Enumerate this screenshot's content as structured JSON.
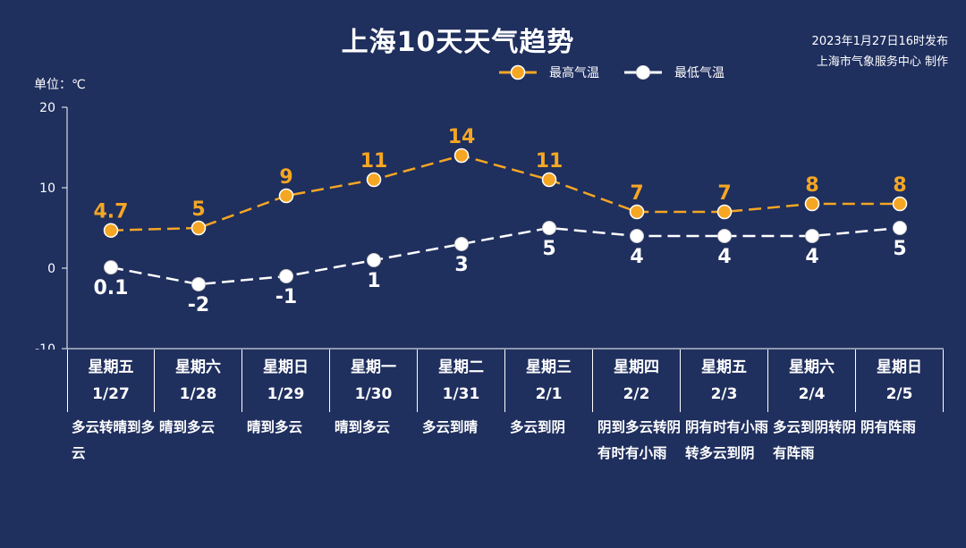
{
  "title": "上海10天天气趋势",
  "issue_time": "2023年1月27日16时发布",
  "issuer": "上海市气象服务中心 制作",
  "unit_label": "单位：℃",
  "colors": {
    "background": "#1f2f5e",
    "high": "#f5a623",
    "low": "#ffffff"
  },
  "chart_data": {
    "type": "line",
    "categories": [
      "1/27",
      "1/28",
      "1/29",
      "1/30",
      "1/31",
      "2/1",
      "2/2",
      "2/3",
      "2/4",
      "2/5"
    ],
    "series": [
      {
        "name": "最高气温",
        "values": [
          4.7,
          5,
          9,
          11,
          14,
          11,
          7,
          7,
          8,
          8
        ],
        "labels": [
          "4.7",
          "5",
          "9",
          "11",
          "14",
          "11",
          "7",
          "7",
          "8",
          "8"
        ],
        "color": "#f5a623"
      },
      {
        "name": "最低气温",
        "values": [
          0.1,
          -2,
          -1,
          1,
          3,
          5,
          4,
          4,
          4,
          5
        ],
        "labels": [
          "0.1",
          "-2",
          "-1",
          "1",
          "3",
          "5",
          "4",
          "4",
          "4",
          "5"
        ],
        "color": "#ffffff"
      }
    ],
    "ylim": [
      -10,
      20
    ],
    "yticks": [
      "20",
      "10",
      "0",
      "-10"
    ],
    "ytick_values": [
      20,
      10,
      0,
      -10
    ],
    "legend_position": "top-right",
    "grid": false
  },
  "days": [
    {
      "weekday": "星期五",
      "date": "1/27",
      "weather": "多云转晴到多云"
    },
    {
      "weekday": "星期六",
      "date": "1/28",
      "weather": "晴到多云"
    },
    {
      "weekday": "星期日",
      "date": "1/29",
      "weather": "晴到多云"
    },
    {
      "weekday": "星期一",
      "date": "1/30",
      "weather": "晴到多云"
    },
    {
      "weekday": "星期二",
      "date": "1/31",
      "weather": "多云到晴"
    },
    {
      "weekday": "星期三",
      "date": "2/1",
      "weather": "多云到阴"
    },
    {
      "weekday": "星期四",
      "date": "2/2",
      "weather": "阴到多云转阴有时有小雨"
    },
    {
      "weekday": "星期五",
      "date": "2/3",
      "weather": "阴有时有小雨转多云到阴"
    },
    {
      "weekday": "星期六",
      "date": "2/4",
      "weather": "多云到阴转阴有阵雨"
    },
    {
      "weekday": "星期日",
      "date": "2/5",
      "weather": "阴有阵雨"
    }
  ]
}
